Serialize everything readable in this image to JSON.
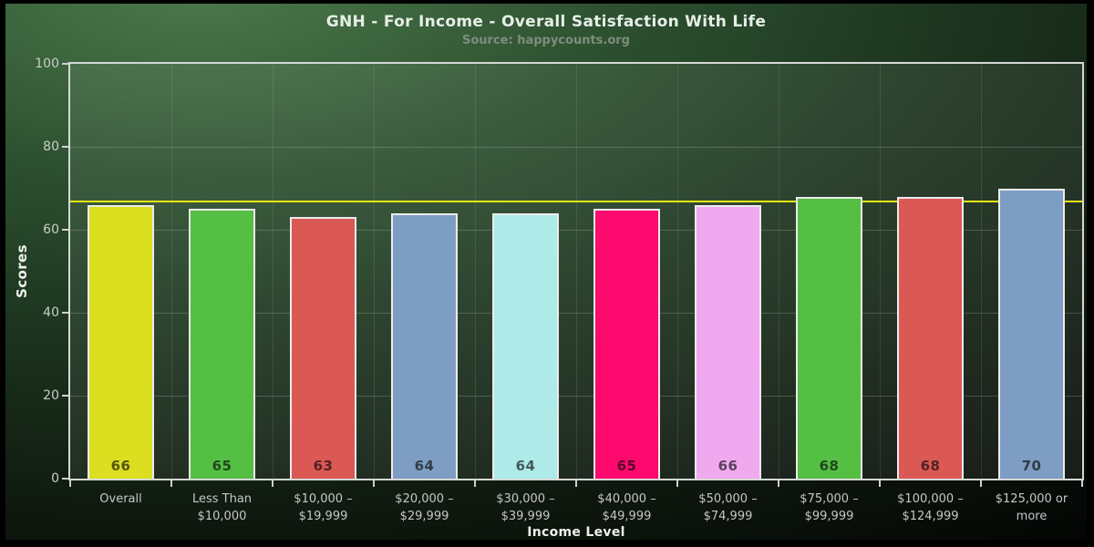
{
  "title": "GNH - For Income - Overall Satisfaction With Life",
  "subtitle": "Source: happycounts.org",
  "chart_data": {
    "type": "bar",
    "title": "GNH - For Income - Overall Satisfaction With Life",
    "subtitle": "Source: happycounts.org",
    "xlabel": "Income Level",
    "ylabel": "Scores",
    "ylim": [
      0,
      100
    ],
    "yticks": [
      0,
      20,
      40,
      60,
      80,
      100
    ],
    "grid": true,
    "legend_position": "none",
    "categories": [
      "Overall",
      "Less Than $10,000",
      "$10,000 – $19,999",
      "$20,000 – $29,999",
      "$30,000 – $39,999",
      "$40,000 – $49,999",
      "$50,000 – $74,999",
      "$75,000 – $99,999",
      "$100,000 – $124,999",
      "$125,000 or more"
    ],
    "category_label_lines": [
      [
        "Overall"
      ],
      [
        "Less Than",
        "$10,000"
      ],
      [
        "$10,000 –",
        "$19,999"
      ],
      [
        "$20,000 –",
        "$29,999"
      ],
      [
        "$30,000 –",
        "$39,999"
      ],
      [
        "$40,000 –",
        "$49,999"
      ],
      [
        "$50,000 –",
        "$74,999"
      ],
      [
        "$75,000 –",
        "$99,999"
      ],
      [
        "$100,000 –",
        "$124,999"
      ],
      [
        "$125,000 or",
        "more"
      ]
    ],
    "values": [
      66,
      65,
      63,
      64,
      64,
      65,
      66,
      68,
      68,
      70
    ],
    "bar_colors": [
      "#dbdf20",
      "#55bf44",
      "#db5955",
      "#7e9dc2",
      "#aeebe8",
      "#fc0a6e",
      "#f0a9ef",
      "#55bf44",
      "#db5955",
      "#7e9dc2"
    ],
    "bar_value_label_color": "rgba(0,0,0,0.62)",
    "reference_line": {
      "value": 66.8,
      "color": "#e6ef14"
    },
    "colors": {
      "background_green": "#2d5130",
      "plot_overlay": "rgba(255,255,255,0.07)",
      "axis_frame": "#d5d8d5",
      "tick_label": "#c8cfc8",
      "title_text": "#e7eee7",
      "subtitle_text": "#7e8e7e"
    }
  }
}
